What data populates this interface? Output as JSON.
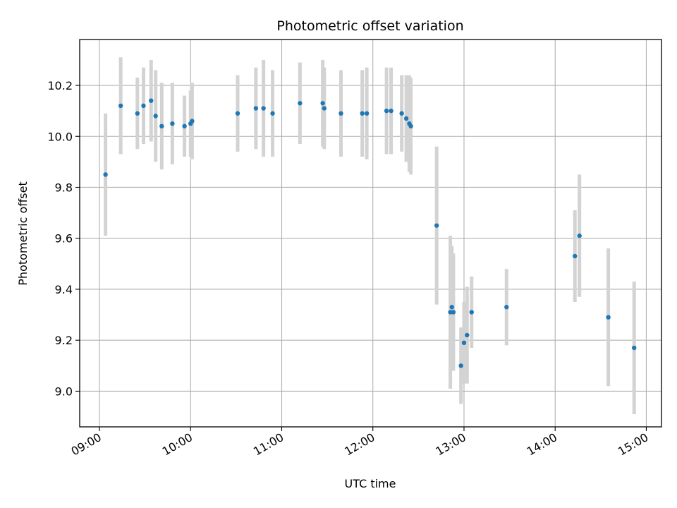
{
  "chart_data": {
    "type": "scatter",
    "title": "Photometric offset variation",
    "xlabel": "UTC time",
    "ylabel": "Photometric offset",
    "xlim": [
      "08:47",
      "15:10"
    ],
    "ylim": [
      8.86,
      10.38
    ],
    "x_ticks": [
      "09:00",
      "10:00",
      "11:00",
      "12:00",
      "13:00",
      "14:00",
      "15:00"
    ],
    "y_ticks": [
      "9.0",
      "9.2",
      "9.4",
      "9.6",
      "9.8",
      "10.0",
      "10.2"
    ],
    "grid": true,
    "marker_color": "#1f77b4",
    "errorbar_color": "#d3d3d3",
    "points": [
      {
        "x": "09:04",
        "y": 9.85,
        "err": 0.24
      },
      {
        "x": "09:14",
        "y": 10.12,
        "err": 0.19
      },
      {
        "x": "09:25",
        "y": 10.09,
        "err": 0.14
      },
      {
        "x": "09:29",
        "y": 10.12,
        "err": 0.15
      },
      {
        "x": "09:34",
        "y": 10.14,
        "err": 0.16
      },
      {
        "x": "09:37",
        "y": 10.08,
        "err": 0.18
      },
      {
        "x": "09:41",
        "y": 10.04,
        "err": 0.17
      },
      {
        "x": "09:48",
        "y": 10.05,
        "err": 0.16
      },
      {
        "x": "09:56",
        "y": 10.04,
        "err": 0.12
      },
      {
        "x": "10:00",
        "y": 10.05,
        "err": 0.13
      },
      {
        "x": "10:01",
        "y": 10.06,
        "err": 0.15
      },
      {
        "x": "10:31",
        "y": 10.09,
        "err": 0.15
      },
      {
        "x": "10:43",
        "y": 10.11,
        "err": 0.16
      },
      {
        "x": "10:48",
        "y": 10.11,
        "err": 0.19
      },
      {
        "x": "10:54",
        "y": 10.09,
        "err": 0.17
      },
      {
        "x": "11:12",
        "y": 10.13,
        "err": 0.16
      },
      {
        "x": "11:27",
        "y": 10.13,
        "err": 0.17
      },
      {
        "x": "11:28",
        "y": 10.11,
        "err": 0.16
      },
      {
        "x": "11:39",
        "y": 10.09,
        "err": 0.17
      },
      {
        "x": "11:53",
        "y": 10.09,
        "err": 0.17
      },
      {
        "x": "11:56",
        "y": 10.09,
        "err": 0.18
      },
      {
        "x": "12:09",
        "y": 10.1,
        "err": 0.17
      },
      {
        "x": "12:12",
        "y": 10.1,
        "err": 0.17
      },
      {
        "x": "12:19",
        "y": 10.09,
        "err": 0.15
      },
      {
        "x": "12:22",
        "y": 10.07,
        "err": 0.17
      },
      {
        "x": "12:24",
        "y": 10.05,
        "err": 0.19
      },
      {
        "x": "12:25",
        "y": 10.04,
        "err": 0.19
      },
      {
        "x": "12:42",
        "y": 9.65,
        "err": 0.31
      },
      {
        "x": "12:51",
        "y": 9.31,
        "err": 0.3
      },
      {
        "x": "12:52",
        "y": 9.33,
        "err": 0.24
      },
      {
        "x": "12:53",
        "y": 9.31,
        "err": 0.23
      },
      {
        "x": "12:58",
        "y": 9.1,
        "err": 0.15
      },
      {
        "x": "13:00",
        "y": 9.19,
        "err": 0.16
      },
      {
        "x": "13:02",
        "y": 9.22,
        "err": 0.19
      },
      {
        "x": "13:05",
        "y": 9.31,
        "err": 0.14
      },
      {
        "x": "13:28",
        "y": 9.33,
        "err": 0.15
      },
      {
        "x": "14:13",
        "y": 9.53,
        "err": 0.18
      },
      {
        "x": "14:16",
        "y": 9.61,
        "err": 0.24
      },
      {
        "x": "14:35",
        "y": 9.29,
        "err": 0.27
      },
      {
        "x": "14:52",
        "y": 9.17,
        "err": 0.26
      }
    ]
  }
}
